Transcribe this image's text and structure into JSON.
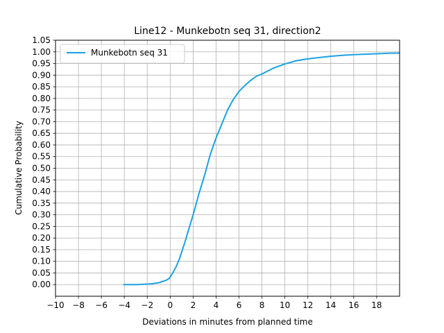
{
  "chart_data": {
    "type": "line",
    "title": "Line12 - Munkebotn seq 31, direction2",
    "xlabel": "Deviations in minutes from planned time",
    "ylabel": "Cumulative Probability",
    "xlim": [
      -10,
      20
    ],
    "ylim": [
      -0.05,
      1.05
    ],
    "xticks": [
      -10,
      -8,
      -6,
      -4,
      -2,
      0,
      2,
      4,
      6,
      8,
      10,
      12,
      14,
      16,
      18
    ],
    "xtick_labels": [
      "−10",
      "−8",
      "−6",
      "−4",
      "−2",
      "0",
      "2",
      "4",
      "6",
      "8",
      "10",
      "12",
      "14",
      "16",
      "18"
    ],
    "yticks": [
      0.0,
      0.05,
      0.1,
      0.15,
      0.2,
      0.25,
      0.3,
      0.35,
      0.4,
      0.45,
      0.5,
      0.55,
      0.6,
      0.65,
      0.7,
      0.75,
      0.8,
      0.85,
      0.9,
      0.95,
      1.0,
      1.05
    ],
    "ytick_labels": [
      "0.00",
      "0.05",
      "0.10",
      "0.15",
      "0.20",
      "0.25",
      "0.30",
      "0.35",
      "0.40",
      "0.45",
      "0.50",
      "0.55",
      "0.60",
      "0.65",
      "0.70",
      "0.75",
      "0.80",
      "0.85",
      "0.90",
      "0.95",
      "1.00",
      "1.05"
    ],
    "grid": true,
    "legend_position": "top-left",
    "series": [
      {
        "name": "Munkebotn seq 31",
        "color": "#1ba1e2",
        "x": [
          -4.1,
          -3.5,
          -3.0,
          -2.5,
          -2.0,
          -1.5,
          -1.0,
          -0.7,
          -0.5,
          -0.3,
          -0.1,
          0.0,
          0.2,
          0.5,
          0.8,
          1.0,
          1.3,
          1.6,
          2.0,
          2.5,
          3.0,
          3.5,
          4.0,
          4.5,
          5.0,
          5.5,
          6.0,
          6.5,
          7.0,
          7.5,
          8.0,
          9.0,
          10.0,
          11.0,
          12.0,
          13.0,
          14.0,
          15.0,
          16.0,
          17.0,
          18.0,
          19.0,
          20.0
        ],
        "y": [
          0.0,
          0.0,
          0.0,
          0.001,
          0.002,
          0.004,
          0.008,
          0.013,
          0.016,
          0.02,
          0.026,
          0.033,
          0.048,
          0.075,
          0.11,
          0.14,
          0.185,
          0.235,
          0.3,
          0.39,
          0.47,
          0.56,
          0.63,
          0.69,
          0.75,
          0.795,
          0.83,
          0.855,
          0.877,
          0.895,
          0.905,
          0.93,
          0.948,
          0.962,
          0.97,
          0.976,
          0.981,
          0.985,
          0.988,
          0.99,
          0.992,
          0.994,
          0.995
        ]
      }
    ]
  }
}
